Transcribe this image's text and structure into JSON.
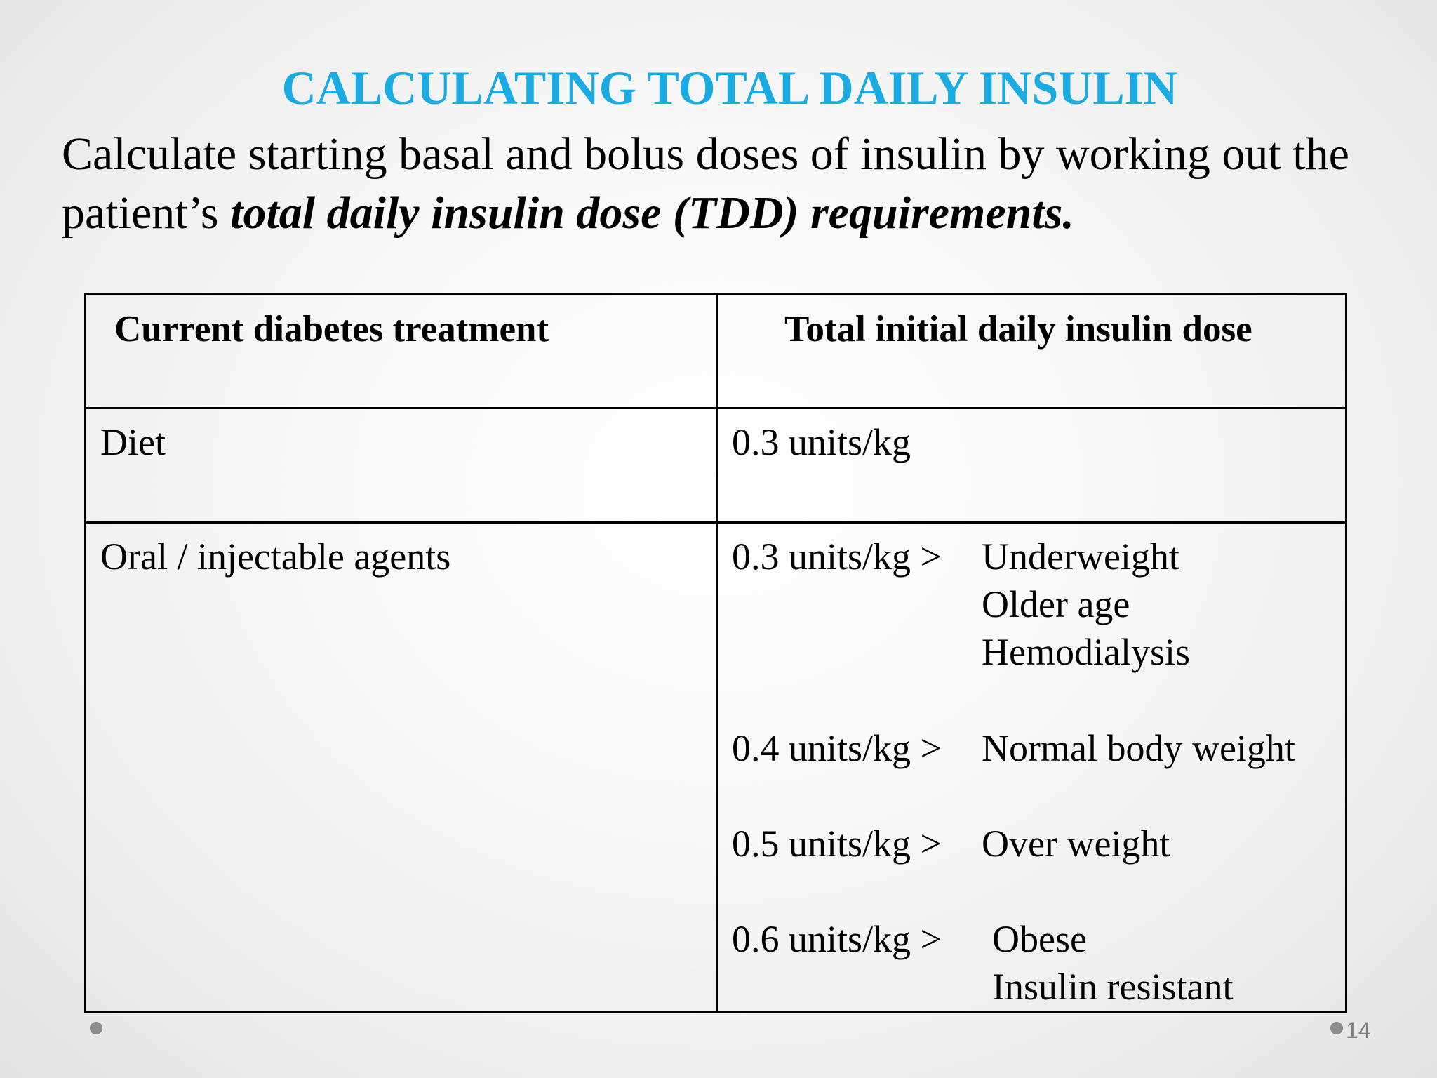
{
  "slide": {
    "title": "CALCULATING TOTAL DAILY INSULIN",
    "intro_text": "Calculate starting basal and bolus doses of insulin by working out the patient’s ",
    "intro_emphasis": "total daily insulin dose (TDD) requirements.",
    "page_number": "14"
  },
  "table": {
    "headers": [
      "Current diabetes treatment",
      "Total initial daily insulin dose"
    ],
    "rows": [
      {
        "treatment": "Diet",
        "dose": "0.3 units/kg"
      },
      {
        "treatment": "Oral / injectable agents",
        "doses": [
          {
            "value": "0.3 units/kg >",
            "criteria": [
              "Underweight",
              "Older age",
              "Hemodialysis"
            ]
          },
          {
            "value": "0.4 units/kg >",
            "criteria": [
              "Normal body weight"
            ]
          },
          {
            "value": "0.5 units/kg >",
            "criteria": [
              "Over weight"
            ]
          },
          {
            "value": "0.6 units/kg >",
            "criteria": [
              "Obese",
              "Insulin resistant"
            ]
          }
        ]
      }
    ]
  },
  "colors": {
    "title": "#1aabe3",
    "text": "#000000",
    "border": "#000000",
    "bullet": "#8c8c8c"
  }
}
